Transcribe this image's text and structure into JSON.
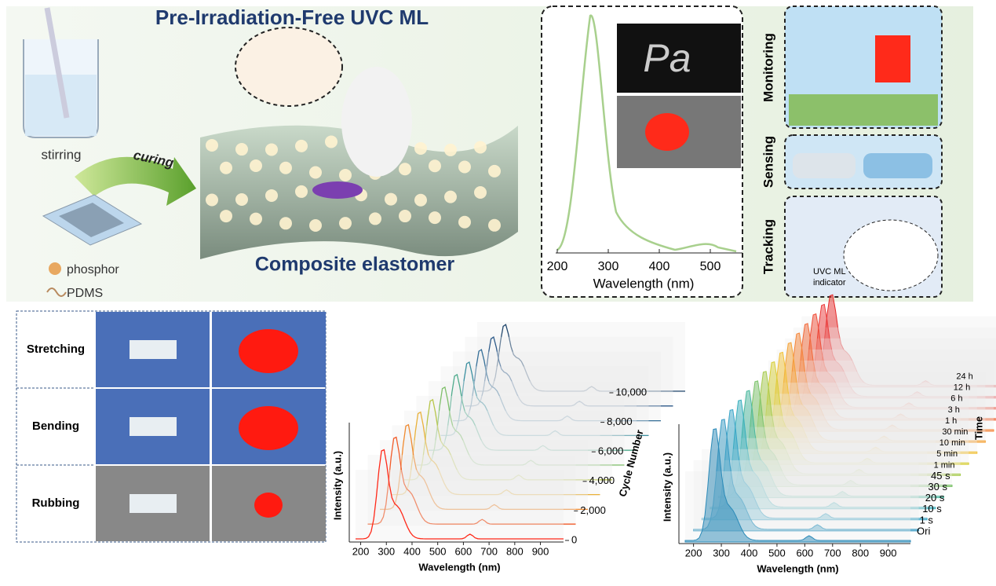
{
  "header": {
    "title": "Pre-Irradiation-Free UVC ML",
    "stirring": "stirring",
    "curing": "curing",
    "elastomer": "Composite elastomer",
    "legend": [
      "phosphor",
      "PDMS"
    ]
  },
  "top_spectrum": {
    "xlabel": "Wavelength (nm)",
    "xlim": [
      200,
      550
    ],
    "xticks": [
      200,
      300,
      400,
      500
    ]
  },
  "applications": {
    "labels": [
      "Monitoring",
      "Sensing",
      "Tracking"
    ],
    "indicator": [
      "UVC ML",
      "indicator"
    ]
  },
  "modes": [
    "Stretching",
    "Bending",
    "Rubbing"
  ],
  "cycle_chart": {
    "ylabel": "Intensity (a.u.)",
    "xlabel": "Wavelength (nm)",
    "xlim": [
      180,
      990
    ],
    "xticks": [
      200,
      300,
      400,
      500,
      600,
      700,
      800,
      900
    ],
    "zlabel": "Cycle Number",
    "zlim": [
      0,
      10000
    ],
    "zticks": [
      0,
      {
        "value": 2000,
        "label": "2,000"
      },
      {
        "value": 4000,
        "label": "4,000"
      },
      {
        "value": 6000,
        "label": "6,000"
      },
      {
        "value": 8000,
        "label": "8,000"
      },
      {
        "value": 10000,
        "label": "10,000"
      }
    ]
  },
  "time_chart": {
    "ylabel": "Intensity (a.u.)",
    "xlabel": "Wavelength (nm)",
    "xlim": [
      170,
      980
    ],
    "xticks": [
      200,
      300,
      400,
      500,
      600,
      700,
      800,
      900
    ],
    "zlabel": "Time",
    "categories": [
      "Ori",
      "1 s",
      "10 s",
      "20 s",
      "30 s",
      "45 s",
      "1 min",
      "5 min",
      "10 min",
      "30 min",
      "1 h",
      "3 h",
      "6 h",
      "12 h",
      "24 h"
    ]
  }
}
